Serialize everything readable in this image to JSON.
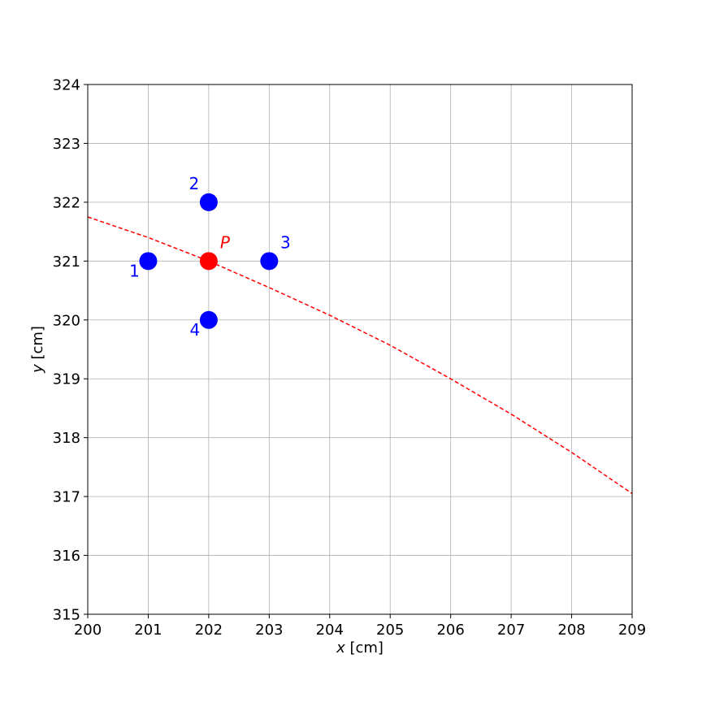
{
  "chart_data": {
    "type": "scatter",
    "title": "",
    "xlabel_var": "x",
    "xlabel_unit": " [cm]",
    "ylabel_var": "y",
    "ylabel_unit": " [cm]",
    "xlim": [
      200,
      209
    ],
    "ylim": [
      315,
      324
    ],
    "xticks": [
      200,
      201,
      202,
      203,
      204,
      205,
      206,
      207,
      208,
      209
    ],
    "yticks": [
      315,
      316,
      317,
      318,
      319,
      320,
      321,
      322,
      323,
      324
    ],
    "grid": true,
    "points": [
      {
        "label": "1",
        "x": 201,
        "y": 321,
        "color": "#0000ff",
        "label_pos": "lower-left"
      },
      {
        "label": "2",
        "x": 202,
        "y": 322,
        "color": "#0000ff",
        "label_pos": "upper-left"
      },
      {
        "label": "3",
        "x": 203,
        "y": 321,
        "color": "#0000ff",
        "label_pos": "upper-right"
      },
      {
        "label": "4",
        "x": 202,
        "y": 320,
        "color": "#0000ff",
        "label_pos": "lower-left"
      },
      {
        "label": "P",
        "x": 202,
        "y": 321,
        "color": "#ff0000",
        "label_pos": "upper-right",
        "italic": true
      }
    ],
    "curve": {
      "style": "dashed",
      "color": "#ff0000",
      "x": [
        200,
        201,
        202,
        203,
        204,
        205,
        206,
        207,
        208,
        209
      ],
      "y": [
        321.75,
        321.4,
        321.0,
        320.55,
        320.08,
        319.57,
        319.0,
        318.4,
        317.75,
        317.05
      ]
    }
  }
}
